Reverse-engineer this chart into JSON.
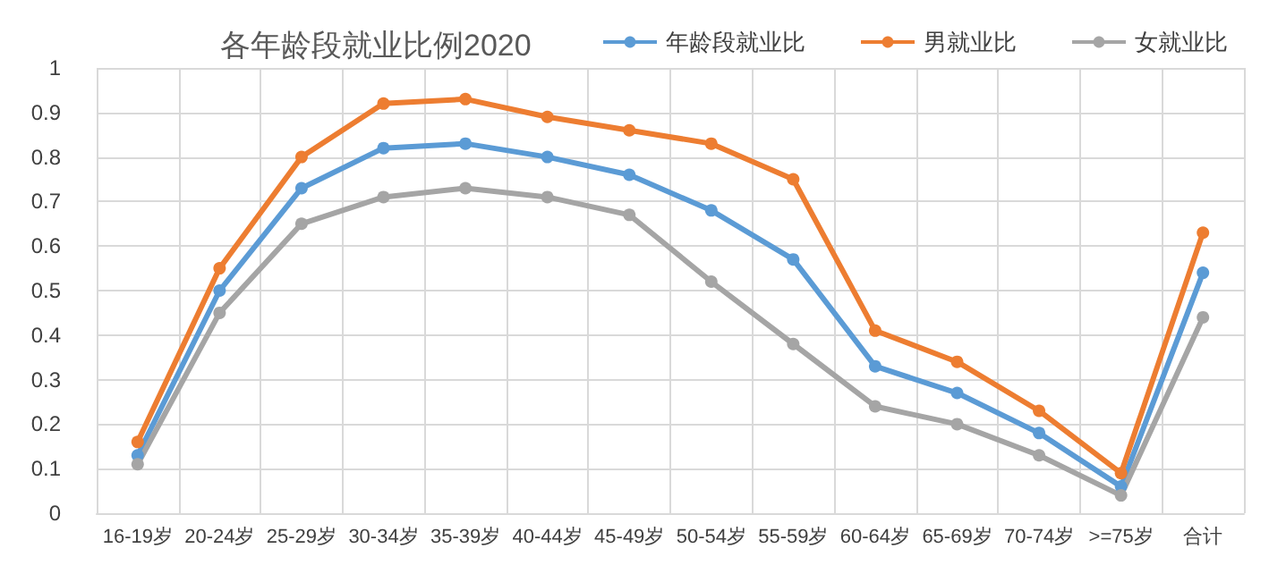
{
  "chart_data": {
    "type": "line",
    "title": "各年龄段就业比例2020",
    "categories": [
      "16-19岁",
      "20-24岁",
      "25-29岁",
      "30-34岁",
      "35-39岁",
      "40-44岁",
      "45-49岁",
      "50-54岁",
      "55-59岁",
      "60-64岁",
      "65-69岁",
      "70-74岁",
      ">=75岁",
      "合计"
    ],
    "series": [
      {
        "name": "年龄段就业比",
        "color": "#5b9bd5",
        "values": [
          0.13,
          0.5,
          0.73,
          0.82,
          0.83,
          0.8,
          0.76,
          0.68,
          0.57,
          0.33,
          0.27,
          0.18,
          0.06,
          0.54
        ]
      },
      {
        "name": "男就业比",
        "color": "#ed7d31",
        "values": [
          0.16,
          0.55,
          0.8,
          0.92,
          0.93,
          0.89,
          0.86,
          0.83,
          0.75,
          0.41,
          0.34,
          0.23,
          0.09,
          0.63
        ]
      },
      {
        "name": "女就业比",
        "color": "#a5a5a5",
        "values": [
          0.11,
          0.45,
          0.65,
          0.71,
          0.73,
          0.71,
          0.67,
          0.52,
          0.38,
          0.24,
          0.2,
          0.13,
          0.04,
          0.44
        ]
      }
    ],
    "ylim": [
      0,
      1
    ],
    "yticks": [
      0,
      0.1,
      0.2,
      0.3,
      0.4,
      0.5,
      0.6,
      0.7,
      0.8,
      0.9,
      1
    ],
    "grid": true,
    "legend": "top right",
    "marker": "circle",
    "line_style": "solid"
  }
}
